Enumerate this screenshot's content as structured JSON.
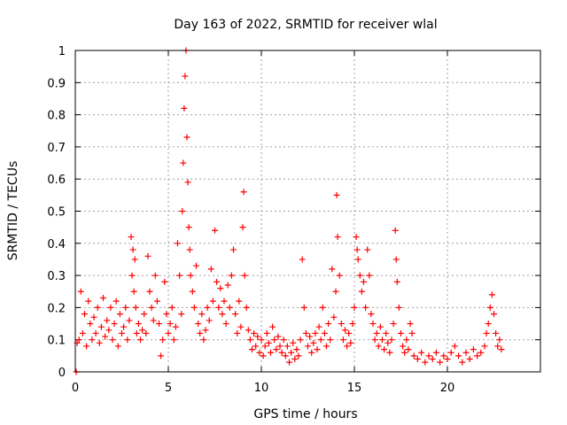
{
  "chart_data": {
    "type": "scatter",
    "title": "Day 163 of 2022, SRMTID for receiver wlal",
    "xlabel": "GPS time / hours",
    "ylabel": "SRMTID / TECUs",
    "xlim": [
      0,
      25
    ],
    "ylim": [
      0,
      1
    ],
    "grid": true,
    "legend": "none",
    "marker": "plus",
    "color": "#ff0000",
    "x_ticks": [
      0,
      5,
      10,
      15,
      20
    ],
    "x_tick_labels": [
      "0",
      "5",
      "10",
      "15",
      "20"
    ],
    "y_ticks": [
      0,
      0.1,
      0.2,
      0.3,
      0.4,
      0.5,
      0.6,
      0.7,
      0.8,
      0.9,
      1
    ],
    "y_tick_labels": [
      "0",
      "0.1",
      "0.2",
      "0.3",
      "0.4",
      "0.5",
      "0.6",
      "0.7",
      "0.8",
      "0.9",
      "1"
    ],
    "series": [
      {
        "name": "SRMTID",
        "points": [
          [
            0.05,
            0.0
          ],
          [
            0.1,
            0.09
          ],
          [
            0.2,
            0.1
          ],
          [
            0.3,
            0.25
          ],
          [
            0.4,
            0.12
          ],
          [
            0.5,
            0.18
          ],
          [
            0.6,
            0.08
          ],
          [
            0.7,
            0.22
          ],
          [
            0.8,
            0.15
          ],
          [
            0.9,
            0.1
          ],
          [
            1.0,
            0.17
          ],
          [
            1.1,
            0.12
          ],
          [
            1.2,
            0.2
          ],
          [
            1.3,
            0.09
          ],
          [
            1.4,
            0.14
          ],
          [
            1.5,
            0.23
          ],
          [
            1.6,
            0.11
          ],
          [
            1.7,
            0.16
          ],
          [
            1.8,
            0.13
          ],
          [
            1.9,
            0.2
          ],
          [
            2.0,
            0.1
          ],
          [
            2.1,
            0.15
          ],
          [
            2.2,
            0.22
          ],
          [
            2.3,
            0.08
          ],
          [
            2.4,
            0.18
          ],
          [
            2.5,
            0.12
          ],
          [
            2.6,
            0.14
          ],
          [
            2.7,
            0.2
          ],
          [
            2.8,
            0.1
          ],
          [
            2.9,
            0.16
          ],
          [
            3.0,
            0.42
          ],
          [
            3.05,
            0.3
          ],
          [
            3.1,
            0.38
          ],
          [
            3.15,
            0.25
          ],
          [
            3.2,
            0.35
          ],
          [
            3.25,
            0.2
          ],
          [
            3.3,
            0.12
          ],
          [
            3.4,
            0.15
          ],
          [
            3.5,
            0.1
          ],
          [
            3.6,
            0.13
          ],
          [
            3.7,
            0.18
          ],
          [
            3.8,
            0.12
          ],
          [
            3.9,
            0.36
          ],
          [
            4.0,
            0.25
          ],
          [
            4.1,
            0.2
          ],
          [
            4.2,
            0.16
          ],
          [
            4.3,
            0.3
          ],
          [
            4.4,
            0.22
          ],
          [
            4.5,
            0.15
          ],
          [
            4.6,
            0.05
          ],
          [
            4.7,
            0.1
          ],
          [
            4.8,
            0.28
          ],
          [
            4.9,
            0.18
          ],
          [
            5.0,
            0.12
          ],
          [
            5.1,
            0.15
          ],
          [
            5.2,
            0.2
          ],
          [
            5.3,
            0.1
          ],
          [
            5.4,
            0.14
          ],
          [
            5.5,
            0.4
          ],
          [
            5.6,
            0.3
          ],
          [
            5.7,
            0.18
          ],
          [
            5.75,
            0.5
          ],
          [
            5.8,
            0.65
          ],
          [
            5.85,
            0.82
          ],
          [
            5.9,
            0.92
          ],
          [
            5.95,
            1.0
          ],
          [
            6.0,
            0.73
          ],
          [
            6.05,
            0.59
          ],
          [
            6.1,
            0.45
          ],
          [
            6.15,
            0.38
          ],
          [
            6.2,
            0.3
          ],
          [
            6.3,
            0.25
          ],
          [
            6.4,
            0.2
          ],
          [
            6.5,
            0.33
          ],
          [
            6.6,
            0.15
          ],
          [
            6.7,
            0.12
          ],
          [
            6.8,
            0.18
          ],
          [
            6.9,
            0.1
          ],
          [
            7.0,
            0.13
          ],
          [
            7.1,
            0.2
          ],
          [
            7.2,
            0.16
          ],
          [
            7.3,
            0.32
          ],
          [
            7.4,
            0.22
          ],
          [
            7.5,
            0.44
          ],
          [
            7.6,
            0.28
          ],
          [
            7.7,
            0.2
          ],
          [
            7.8,
            0.26
          ],
          [
            7.9,
            0.18
          ],
          [
            8.0,
            0.22
          ],
          [
            8.1,
            0.15
          ],
          [
            8.2,
            0.27
          ],
          [
            8.3,
            0.2
          ],
          [
            8.4,
            0.3
          ],
          [
            8.5,
            0.38
          ],
          [
            8.6,
            0.18
          ],
          [
            8.7,
            0.12
          ],
          [
            8.8,
            0.22
          ],
          [
            8.9,
            0.14
          ],
          [
            9.0,
            0.45
          ],
          [
            9.05,
            0.56
          ],
          [
            9.1,
            0.3
          ],
          [
            9.2,
            0.2
          ],
          [
            9.3,
            0.13
          ],
          [
            9.4,
            0.1
          ],
          [
            9.5,
            0.07
          ],
          [
            9.6,
            0.12
          ],
          [
            9.7,
            0.08
          ],
          [
            9.8,
            0.11
          ],
          [
            9.9,
            0.06
          ],
          [
            10.0,
            0.1
          ],
          [
            10.1,
            0.05
          ],
          [
            10.2,
            0.08
          ],
          [
            10.3,
            0.12
          ],
          [
            10.4,
            0.09
          ],
          [
            10.5,
            0.06
          ],
          [
            10.6,
            0.14
          ],
          [
            10.7,
            0.1
          ],
          [
            10.8,
            0.07
          ],
          [
            10.9,
            0.11
          ],
          [
            11.0,
            0.08
          ],
          [
            11.1,
            0.06
          ],
          [
            11.2,
            0.1
          ],
          [
            11.3,
            0.05
          ],
          [
            11.4,
            0.08
          ],
          [
            11.5,
            0.03
          ],
          [
            11.6,
            0.06
          ],
          [
            11.7,
            0.09
          ],
          [
            11.8,
            0.04
          ],
          [
            11.9,
            0.07
          ],
          [
            12.0,
            0.05
          ],
          [
            12.1,
            0.1
          ],
          [
            12.2,
            0.35
          ],
          [
            12.3,
            0.2
          ],
          [
            12.4,
            0.12
          ],
          [
            12.5,
            0.08
          ],
          [
            12.6,
            0.11
          ],
          [
            12.7,
            0.06
          ],
          [
            12.8,
            0.09
          ],
          [
            12.9,
            0.12
          ],
          [
            13.0,
            0.07
          ],
          [
            13.1,
            0.14
          ],
          [
            13.2,
            0.1
          ],
          [
            13.3,
            0.2
          ],
          [
            13.4,
            0.12
          ],
          [
            13.5,
            0.08
          ],
          [
            13.6,
            0.15
          ],
          [
            13.7,
            0.1
          ],
          [
            13.8,
            0.32
          ],
          [
            13.9,
            0.17
          ],
          [
            14.0,
            0.25
          ],
          [
            14.05,
            0.55
          ],
          [
            14.1,
            0.42
          ],
          [
            14.2,
            0.3
          ],
          [
            14.3,
            0.15
          ],
          [
            14.4,
            0.1
          ],
          [
            14.5,
            0.13
          ],
          [
            14.6,
            0.08
          ],
          [
            14.7,
            0.12
          ],
          [
            14.8,
            0.09
          ],
          [
            14.9,
            0.15
          ],
          [
            15.0,
            0.2
          ],
          [
            15.1,
            0.42
          ],
          [
            15.15,
            0.38
          ],
          [
            15.2,
            0.35
          ],
          [
            15.3,
            0.3
          ],
          [
            15.4,
            0.25
          ],
          [
            15.5,
            0.28
          ],
          [
            15.6,
            0.2
          ],
          [
            15.7,
            0.38
          ],
          [
            15.8,
            0.3
          ],
          [
            15.9,
            0.18
          ],
          [
            16.0,
            0.15
          ],
          [
            16.1,
            0.1
          ],
          [
            16.2,
            0.12
          ],
          [
            16.3,
            0.08
          ],
          [
            16.4,
            0.14
          ],
          [
            16.5,
            0.1
          ],
          [
            16.6,
            0.07
          ],
          [
            16.7,
            0.12
          ],
          [
            16.8,
            0.09
          ],
          [
            16.9,
            0.06
          ],
          [
            17.0,
            0.1
          ],
          [
            17.1,
            0.15
          ],
          [
            17.2,
            0.44
          ],
          [
            17.25,
            0.35
          ],
          [
            17.3,
            0.28
          ],
          [
            17.4,
            0.2
          ],
          [
            17.5,
            0.12
          ],
          [
            17.6,
            0.08
          ],
          [
            17.7,
            0.06
          ],
          [
            17.8,
            0.1
          ],
          [
            17.9,
            0.07
          ],
          [
            18.0,
            0.15
          ],
          [
            18.1,
            0.12
          ],
          [
            18.2,
            0.05
          ],
          [
            18.4,
            0.04
          ],
          [
            18.6,
            0.06
          ],
          [
            18.8,
            0.03
          ],
          [
            19.0,
            0.05
          ],
          [
            19.2,
            0.04
          ],
          [
            19.4,
            0.06
          ],
          [
            19.6,
            0.03
          ],
          [
            19.8,
            0.05
          ],
          [
            20.0,
            0.04
          ],
          [
            20.2,
            0.06
          ],
          [
            20.4,
            0.08
          ],
          [
            20.6,
            0.05
          ],
          [
            20.8,
            0.03
          ],
          [
            21.0,
            0.06
          ],
          [
            21.2,
            0.04
          ],
          [
            21.4,
            0.07
          ],
          [
            21.6,
            0.05
          ],
          [
            21.8,
            0.06
          ],
          [
            22.0,
            0.08
          ],
          [
            22.1,
            0.12
          ],
          [
            22.2,
            0.15
          ],
          [
            22.3,
            0.2
          ],
          [
            22.4,
            0.24
          ],
          [
            22.5,
            0.18
          ],
          [
            22.6,
            0.12
          ],
          [
            22.7,
            0.08
          ],
          [
            22.8,
            0.1
          ],
          [
            22.9,
            0.07
          ]
        ]
      }
    ]
  }
}
